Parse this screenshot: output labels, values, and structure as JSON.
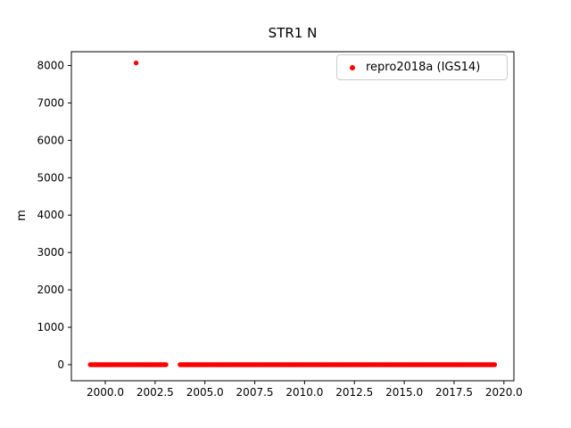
{
  "chart_data": {
    "type": "scatter",
    "title": "STR1 N",
    "xlabel": "",
    "ylabel": "m",
    "xlim": [
      1998.3,
      2020.5
    ],
    "ylim": [
      -430,
      8370
    ],
    "xticks": [
      2000.0,
      2002.5,
      2005.0,
      2007.5,
      2010.0,
      2012.5,
      2015.0,
      2017.5,
      2020.0
    ],
    "xtick_labels": [
      "2000.0",
      "2002.5",
      "2005.0",
      "2007.5",
      "2010.0",
      "2012.5",
      "2015.0",
      "2017.5",
      "2020.0"
    ],
    "yticks": [
      0,
      1000,
      2000,
      3000,
      4000,
      5000,
      6000,
      7000,
      8000
    ],
    "ytick_labels": [
      "0",
      "1000",
      "2000",
      "3000",
      "4000",
      "5000",
      "6000",
      "7000",
      "8000"
    ],
    "grid": false,
    "legend_position": "upper right",
    "series": [
      {
        "name": "repro2018a (IGS14)",
        "color": "#ff0000",
        "marker": "dot",
        "dense_segments": [
          {
            "x_start": 1999.25,
            "x_end": 2003.05,
            "y": 0
          },
          {
            "x_start": 2003.75,
            "x_end": 2019.55,
            "y": 0
          }
        ],
        "outliers": [
          {
            "x": 2001.55,
            "y": 8070
          }
        ]
      }
    ]
  }
}
